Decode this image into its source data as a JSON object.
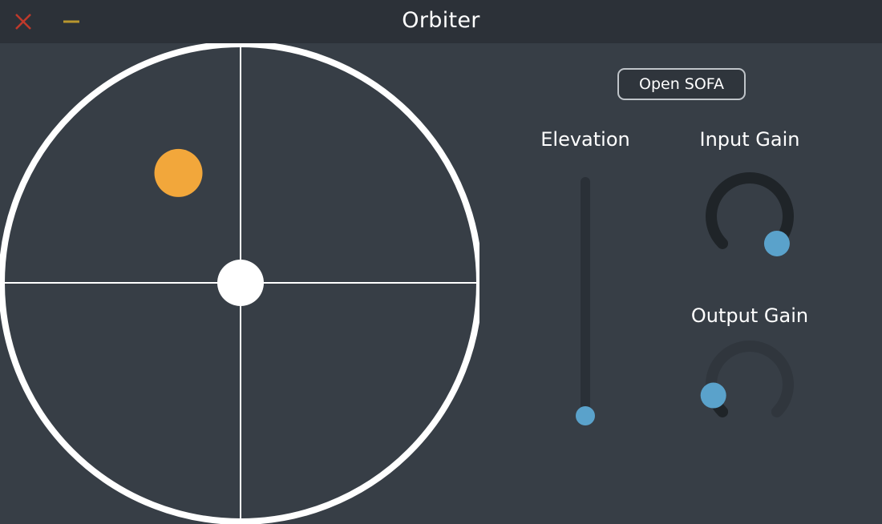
{
  "window": {
    "title": "Orbiter",
    "close_icon": "close-x-icon",
    "minimize_icon": "minimize-dash-icon",
    "close_color": "#c0392b",
    "minimize_color": "#b8962e"
  },
  "panner": {
    "source_color": "#f2a73b",
    "listener_color": "#ffffff",
    "source_position": {
      "x": -0.26,
      "y": 0.46
    }
  },
  "controls": {
    "open_sofa_label": "Open SOFA",
    "elevation": {
      "label": "Elevation",
      "value": 0.0
    },
    "input_gain": {
      "label": "Input Gain",
      "value": 1.0
    },
    "output_gain": {
      "label": "Output Gain",
      "value": 0.0
    },
    "accent_color": "#5aa2cb"
  }
}
